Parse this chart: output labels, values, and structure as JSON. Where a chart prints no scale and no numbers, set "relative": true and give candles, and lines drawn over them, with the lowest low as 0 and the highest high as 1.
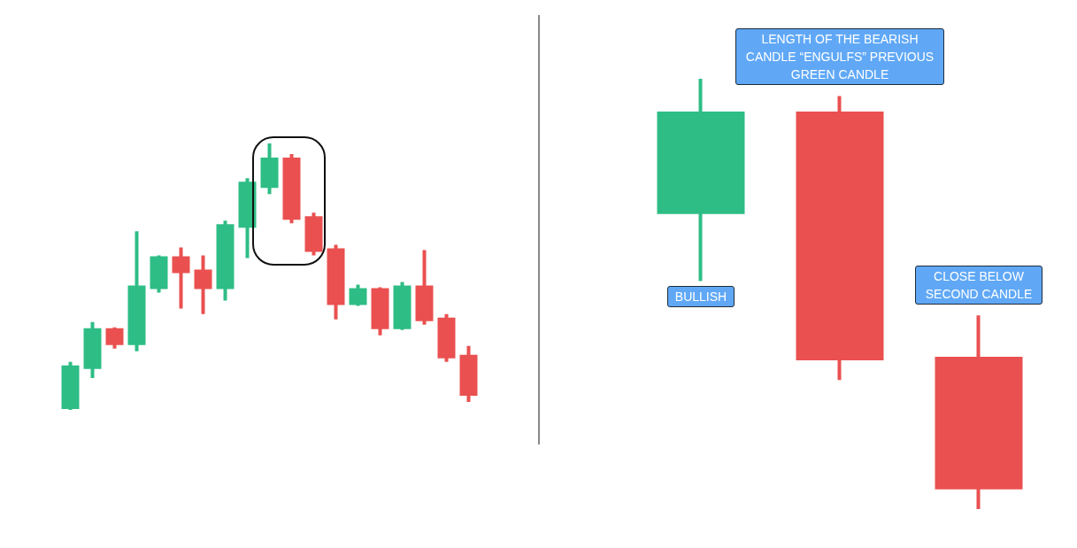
{
  "chart_data": [
    {
      "type": "candlestick",
      "relative": true,
      "categories": [
        null,
        null,
        null,
        null,
        null,
        null,
        null,
        null,
        null,
        null,
        null,
        null,
        null,
        null,
        null,
        null,
        null,
        null,
        null
      ],
      "ohlc": [
        [
          0.01,
          0.18,
          0,
          0.16
        ],
        [
          0.16,
          0.33,
          0.12,
          0.3
        ],
        [
          0.3,
          0.31,
          0.23,
          0.25
        ],
        [
          0.25,
          0.67,
          0.22,
          0.46
        ],
        [
          0.46,
          0.58,
          0.44,
          0.57
        ],
        [
          0.57,
          0.61,
          0.38,
          0.52
        ],
        [
          0.52,
          0.58,
          0.36,
          0.46
        ],
        [
          0.46,
          0.71,
          0.41,
          0.69
        ],
        [
          0.69,
          0.87,
          0.57,
          0.85
        ],
        [
          0.84,
          1,
          0.81,
          0.94
        ],
        [
          0.94,
          0.96,
          0.7,
          0.72
        ],
        [
          0.72,
          0.74,
          0.58,
          0.6
        ],
        [
          0.6,
          0.62,
          0.34,
          0.4
        ],
        [
          0.4,
          0.47,
          0.39,
          0.45
        ],
        [
          0.45,
          0.46,
          0.28,
          0.31
        ],
        [
          0.31,
          0.48,
          0.3,
          0.46
        ],
        [
          0.46,
          0.6,
          0.32,
          0.34
        ],
        [
          0.34,
          0.36,
          0.18,
          0.2
        ],
        [
          0.2,
          0.24,
          0.03,
          0.06
        ]
      ],
      "colors": [
        "#2ebd85",
        "#2ebd85",
        "#ea5050",
        "#2ebd85",
        "#2ebd85",
        "#ea5050",
        "#ea5050",
        "#2ebd85",
        "#2ebd85",
        "#2ebd85",
        "#ea5050",
        "#ea5050",
        "#ea5050",
        "#2ebd85",
        "#ea5050",
        "#2ebd85",
        "#ea5050",
        "#ea5050",
        "#ea5050"
      ]
    },
    {
      "type": "candlestick",
      "relative": true,
      "categories": [
        null,
        null,
        null
      ],
      "ohlc": [
        [
          0.69,
          1,
          0.53,
          0.92
        ],
        [
          0.92,
          0.96,
          0.3,
          0.35
        ],
        [
          0.35,
          0.45,
          0,
          0.05
        ]
      ],
      "colors": [
        "#2ebd85",
        "#ea5050",
        "#ea5050"
      ],
      "annotations": [
        "LENGTH OF THE BEARISH CANDLE “ENGULFS” PREVIOUS GREEN CANDLE",
        "BULLISH",
        "CLOSE BELOW SECOND CANDLE"
      ]
    }
  ]
}
